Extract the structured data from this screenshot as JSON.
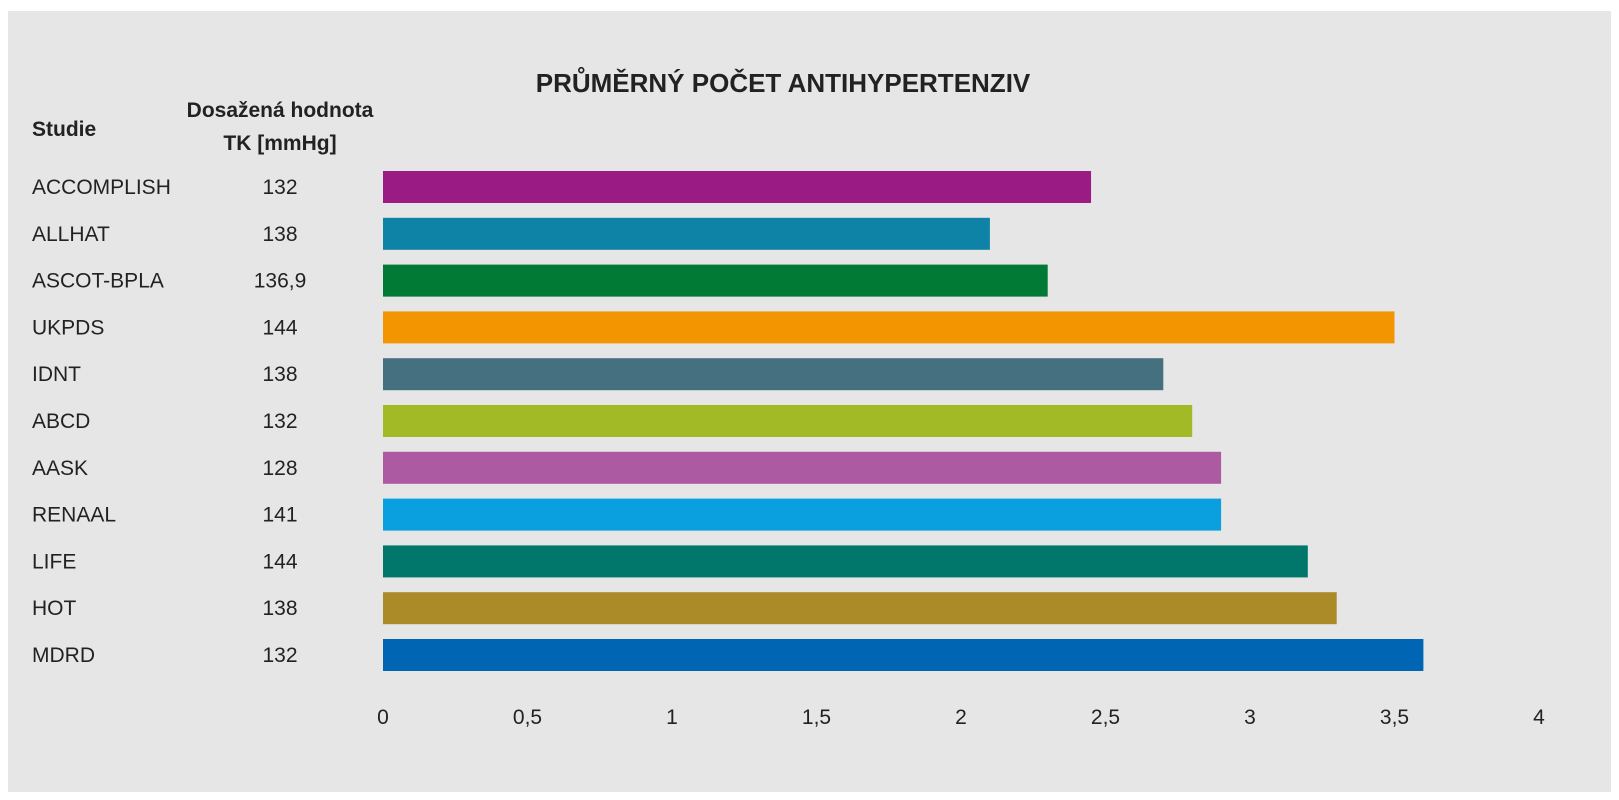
{
  "chart_data": {
    "type": "bar",
    "orientation": "horizontal",
    "title": "PRŮMĚRNÝ POČET ANTIHYPERTENZIV",
    "columns": {
      "study_header": "Studie",
      "bp_header_line1": "Dosažená hodnota",
      "bp_header_line2": "TK [mmHg]"
    },
    "categories": [
      "ACCOMPLISH",
      "ALLHAT",
      "ASCOT-BPLA",
      "UKPDS",
      "IDNT",
      "ABCD",
      "AASK",
      "RENAAL",
      "LIFE",
      "HOT",
      "MDRD"
    ],
    "bp_values": [
      "132",
      "138",
      "136,9",
      "144",
      "138",
      "132",
      "128",
      "141",
      "144",
      "138",
      "132"
    ],
    "values": [
      2.45,
      2.1,
      2.3,
      3.5,
      2.7,
      2.8,
      2.9,
      2.9,
      3.2,
      3.3,
      3.6
    ],
    "colors": [
      "#9b1b84",
      "#0f83a5",
      "#007a35",
      "#f39500",
      "#45707f",
      "#a2ba25",
      "#ac5aa2",
      "#0aa0df",
      "#00776a",
      "#ab8a28",
      "#0066b3"
    ],
    "xlim": [
      0,
      4
    ],
    "xticks": [
      0,
      0.5,
      1,
      1.5,
      2,
      2.5,
      3,
      3.5,
      4
    ],
    "xtick_labels": [
      "0",
      "0,5",
      "1",
      "1,5",
      "2",
      "2,5",
      "3",
      "3,5",
      "4"
    ],
    "grid": false,
    "legend": "none",
    "background": "#e6e6e6"
  }
}
